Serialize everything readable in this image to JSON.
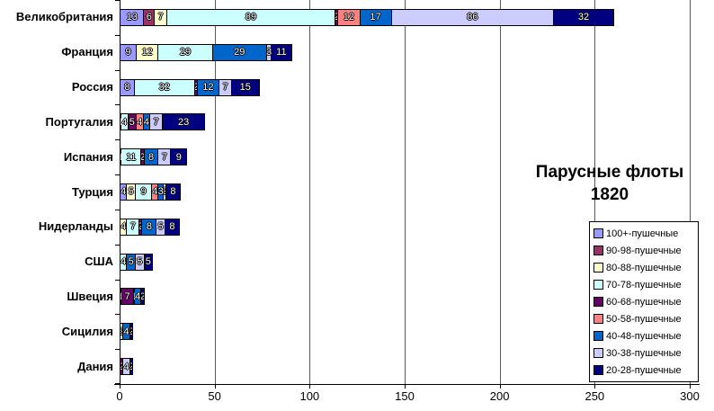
{
  "title": {
    "line1": "Парусные флоты",
    "line2": "1820"
  },
  "chart_data": {
    "type": "bar",
    "orientation": "horizontal",
    "stacked": true,
    "title": "Парусные флоты 1820",
    "categories": [
      "Великобритания",
      "Франция",
      "Россия",
      "Португалия",
      "Испания",
      "Турция",
      "Нидерланды",
      "США",
      "Швеция",
      "Сицилия",
      "Дания"
    ],
    "series": [
      {
        "name": "100+-пушечные",
        "color": "#9999FF",
        "values": [
          13,
          9,
          8,
          0,
          1,
          4,
          0,
          0,
          0,
          0,
          0
        ]
      },
      {
        "name": "90-98-пушечные",
        "color": "#993366",
        "values": [
          6,
          0,
          0,
          0,
          0,
          0,
          0,
          0,
          0,
          0,
          0
        ]
      },
      {
        "name": "80-88-пушечные",
        "color": "#FFFFCC",
        "values": [
          7,
          12,
          0,
          1,
          0,
          5,
          4,
          0,
          1,
          0,
          0
        ]
      },
      {
        "name": "70-78-пушечные",
        "color": "#CCFFFF",
        "values": [
          89,
          29,
          32,
          4,
          11,
          9,
          7,
          4,
          0,
          2,
          0
        ]
      },
      {
        "name": "60-68-пушечные",
        "color": "#660066",
        "values": [
          2,
          0,
          2,
          5,
          2,
          0,
          2,
          0,
          7,
          0,
          2
        ]
      },
      {
        "name": "50-58-пушечные",
        "color": "#FF8080",
        "values": [
          12,
          0,
          0,
          4,
          0,
          4,
          0,
          0,
          1,
          0,
          0
        ]
      },
      {
        "name": "40-48-пушечные",
        "color": "#0066CC",
        "values": [
          17,
          29,
          12,
          4,
          8,
          3,
          8,
          5,
          4,
          4,
          0
        ]
      },
      {
        "name": "30-38-пушечные",
        "color": "#CCCCFF",
        "values": [
          86,
          3,
          7,
          7,
          7,
          2,
          5,
          5,
          0,
          0,
          4
        ]
      },
      {
        "name": "20-28-пушечные",
        "color": "#000080",
        "values": [
          32,
          11,
          15,
          23,
          9,
          8,
          8,
          5,
          2,
          2,
          2
        ]
      }
    ],
    "xlim": [
      0,
      300
    ],
    "xtick_labels": [
      "0",
      "50",
      "100",
      "150",
      "200",
      "250",
      "300"
    ],
    "xticks": [
      0,
      50,
      100,
      150,
      200,
      250,
      300
    ],
    "grid": true,
    "legend_position": "right"
  }
}
